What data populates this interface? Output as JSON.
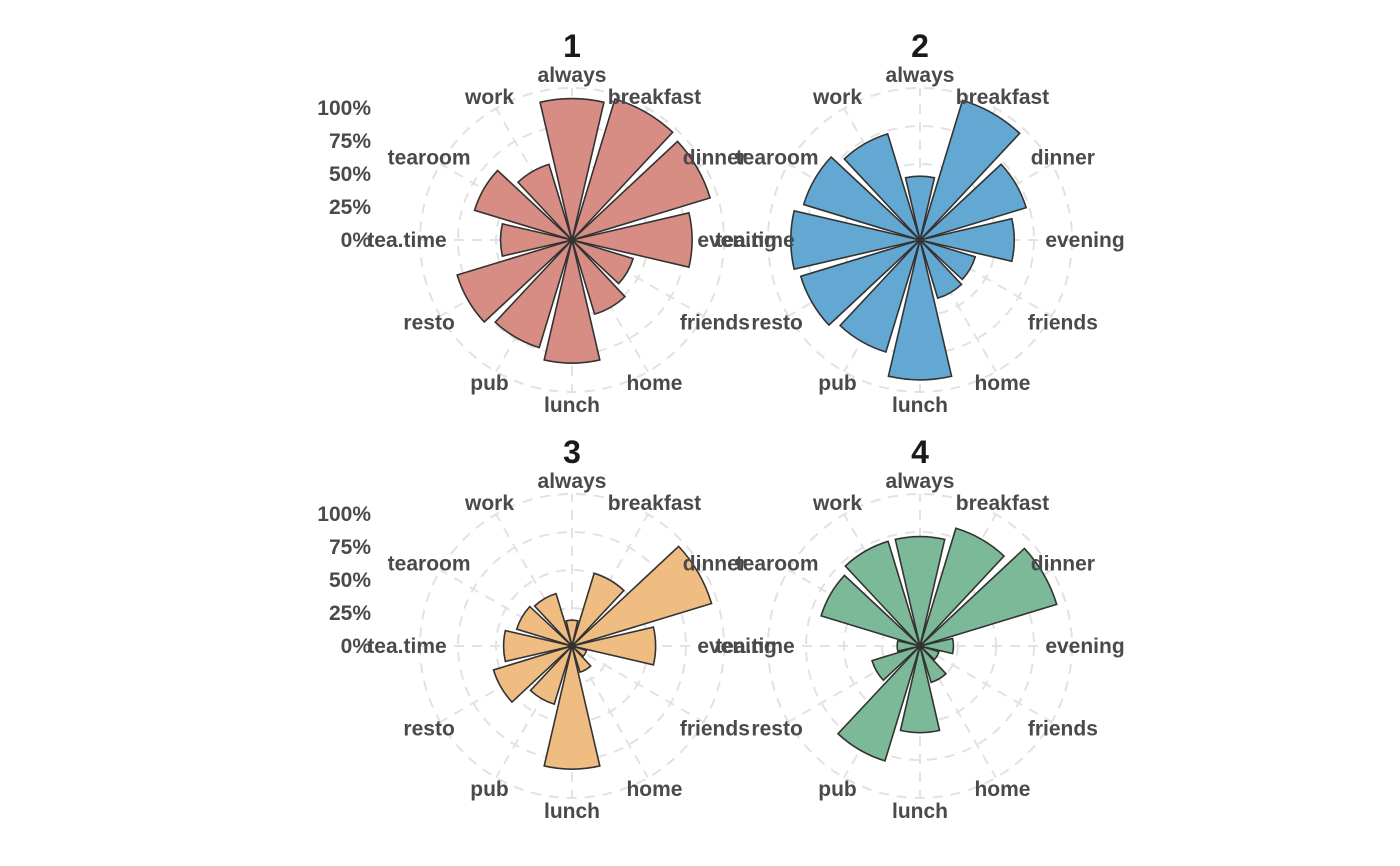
{
  "chart_data": {
    "type": "bar",
    "coord": "polar",
    "categories": [
      "always",
      "breakfast",
      "dinner",
      "evening",
      "friends",
      "home",
      "lunch",
      "pub",
      "resto",
      "tea.time",
      "tearoom",
      "work"
    ],
    "radial_ticks": [
      "0%",
      "25%",
      "50%",
      "75%",
      "100%"
    ],
    "rlim": [
      0,
      100
    ],
    "grid": true,
    "legend": "none",
    "colors": {
      "1": "#d5867d",
      "2": "#5ba3d0",
      "3": "#eeb87a",
      "4": "#74b592",
      "outline": "#333333",
      "grid": "#e2e2e2"
    },
    "panels": [
      {
        "title": "1",
        "color_key": "1",
        "show_ticks": true,
        "values": [
          93,
          97,
          95,
          79,
          42,
          51,
          81,
          74,
          79,
          47,
          67,
          52
        ]
      },
      {
        "title": "2",
        "color_key": "2",
        "show_ticks": false,
        "values": [
          42,
          96,
          73,
          62,
          38,
          40,
          92,
          77,
          82,
          85,
          80,
          73
        ]
      },
      {
        "title": "3",
        "color_key": "3",
        "show_ticks": true,
        "values": [
          17,
          50,
          96,
          55,
          10,
          18,
          81,
          40,
          54,
          45,
          38,
          36
        ]
      },
      {
        "title": "4",
        "color_key": "4",
        "show_ticks": false,
        "values": [
          72,
          81,
          94,
          22,
          13,
          25,
          57,
          79,
          33,
          15,
          68,
          72
        ]
      }
    ]
  }
}
